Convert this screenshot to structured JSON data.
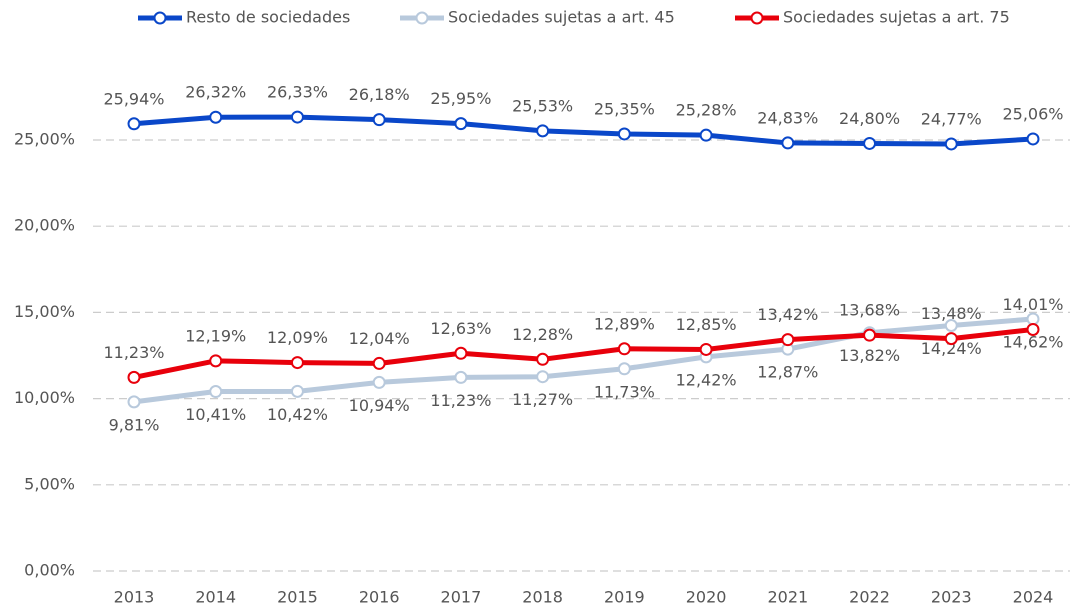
{
  "chart_data": {
    "type": "line",
    "categories": [
      "2013",
      "2014",
      "2015",
      "2016",
      "2017",
      "2018",
      "2019",
      "2020",
      "2021",
      "2022",
      "2023",
      "2024"
    ],
    "series": [
      {
        "name": "Resto de sociedades",
        "color": "#0a47c9",
        "values": [
          25.94,
          26.32,
          26.33,
          26.18,
          25.95,
          25.53,
          25.35,
          25.28,
          24.83,
          24.8,
          24.77,
          25.06
        ],
        "value_labels": [
          "25,94%",
          "26,32%",
          "26,33%",
          "26,18%",
          "25,95%",
          "25,53%",
          "25,35%",
          "25,28%",
          "24,83%",
          "24,80%",
          "24,77%",
          "25,06%"
        ]
      },
      {
        "name": "Sociedades sujetas a art. 45",
        "color": "#b8c9dc",
        "values": [
          9.81,
          10.41,
          10.42,
          10.94,
          11.23,
          11.27,
          11.73,
          12.42,
          12.87,
          13.82,
          14.24,
          14.62
        ],
        "value_labels": [
          "9,81%",
          "10,41%",
          "10,42%",
          "10,94%",
          "11,23%",
          "11,27%",
          "11,73%",
          "12,42%",
          "12,87%",
          "13,82%",
          "14,24%",
          "14,62%"
        ]
      },
      {
        "name": "Sociedades sujetas a art. 75",
        "color": "#e8000b",
        "values": [
          11.23,
          12.19,
          12.09,
          12.04,
          12.63,
          12.28,
          12.89,
          12.85,
          13.42,
          13.68,
          13.48,
          14.01
        ],
        "value_labels": [
          "11,23%",
          "12,19%",
          "12,09%",
          "12,04%",
          "12,63%",
          "12,28%",
          "12,89%",
          "12,85%",
          "13,42%",
          "13,68%",
          "13,48%",
          "14,01%"
        ]
      }
    ],
    "ylim": [
      0,
      27.5
    ],
    "yticks": [
      {
        "value": 0,
        "label": "0,00%"
      },
      {
        "value": 5,
        "label": "5,00%"
      },
      {
        "value": 10,
        "label": "10,00%"
      },
      {
        "value": 15,
        "label": "15,00%"
      },
      {
        "value": 20,
        "label": "20,00%"
      },
      {
        "value": 25,
        "label": "25,00%"
      }
    ],
    "grid": true,
    "legend": "top"
  }
}
